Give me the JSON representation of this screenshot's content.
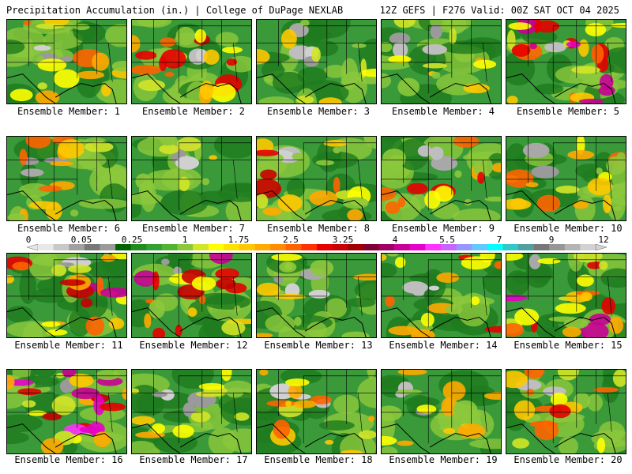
{
  "header": {
    "left": "Precipitation Accumulation (in.) | College of DuPage NEXLAB",
    "right": "12Z GEFS | F276 Valid: 00Z SAT OCT 04 2025"
  },
  "caption_prefix": "Ensemble Member: ",
  "members": [
    {
      "label": "Ensemble Member: 1",
      "wet": 0.55
    },
    {
      "label": "Ensemble Member: 2",
      "wet": 0.75
    },
    {
      "label": "Ensemble Member: 3",
      "wet": 0.35
    },
    {
      "label": "Ensemble Member: 4",
      "wet": 0.35
    },
    {
      "label": "Ensemble Member: 5",
      "wet": 0.8
    },
    {
      "label": "Ensemble Member: 6",
      "wet": 0.45
    },
    {
      "label": "Ensemble Member: 7",
      "wet": 0.3
    },
    {
      "label": "Ensemble Member: 8",
      "wet": 0.6
    },
    {
      "label": "Ensemble Member: 9",
      "wet": 0.55
    },
    {
      "label": "Ensemble Member: 10",
      "wet": 0.6
    },
    {
      "label": "Ensemble Member: 11",
      "wet": 0.75
    },
    {
      "label": "Ensemble Member: 12",
      "wet": 0.7
    },
    {
      "label": "Ensemble Member: 13",
      "wet": 0.35
    },
    {
      "label": "Ensemble Member: 14",
      "wet": 0.55
    },
    {
      "label": "Ensemble Member: 15",
      "wet": 0.8
    },
    {
      "label": "Ensemble Member: 16",
      "wet": 0.85
    },
    {
      "label": "Ensemble Member: 17",
      "wet": 0.4
    },
    {
      "label": "Ensemble Member: 18",
      "wet": 0.5
    },
    {
      "label": "Ensemble Member: 19",
      "wet": 0.45
    },
    {
      "label": "Ensemble Member: 20",
      "wet": 0.55
    }
  ],
  "colorbar": {
    "labels": [
      "0",
      "0.05",
      "0.25",
      "1",
      "1.75",
      "2.5",
      "3.25",
      "4",
      "5.5",
      "7",
      "9",
      "12"
    ],
    "colors": [
      "#e8e8e8",
      "#c8c8c8",
      "#a0a0a0",
      "#787878",
      "#9a9a9a",
      "#006400",
      "#1e8c1e",
      "#32a032",
      "#50b432",
      "#8cc83c",
      "#d2e628",
      "#ffff00",
      "#ffe100",
      "#ffc800",
      "#ffaa00",
      "#ff8c00",
      "#ff6400",
      "#ff3200",
      "#e60000",
      "#c80000",
      "#a00000",
      "#800032",
      "#a00064",
      "#c80096",
      "#e600c8",
      "#ff32ff",
      "#c864ff",
      "#9696ff",
      "#64c8ff",
      "#00ffff",
      "#32c8c8",
      "#50a0a0",
      "#787878",
      "#969696",
      "#b4b4b4",
      "#d2d2d2"
    ]
  }
}
